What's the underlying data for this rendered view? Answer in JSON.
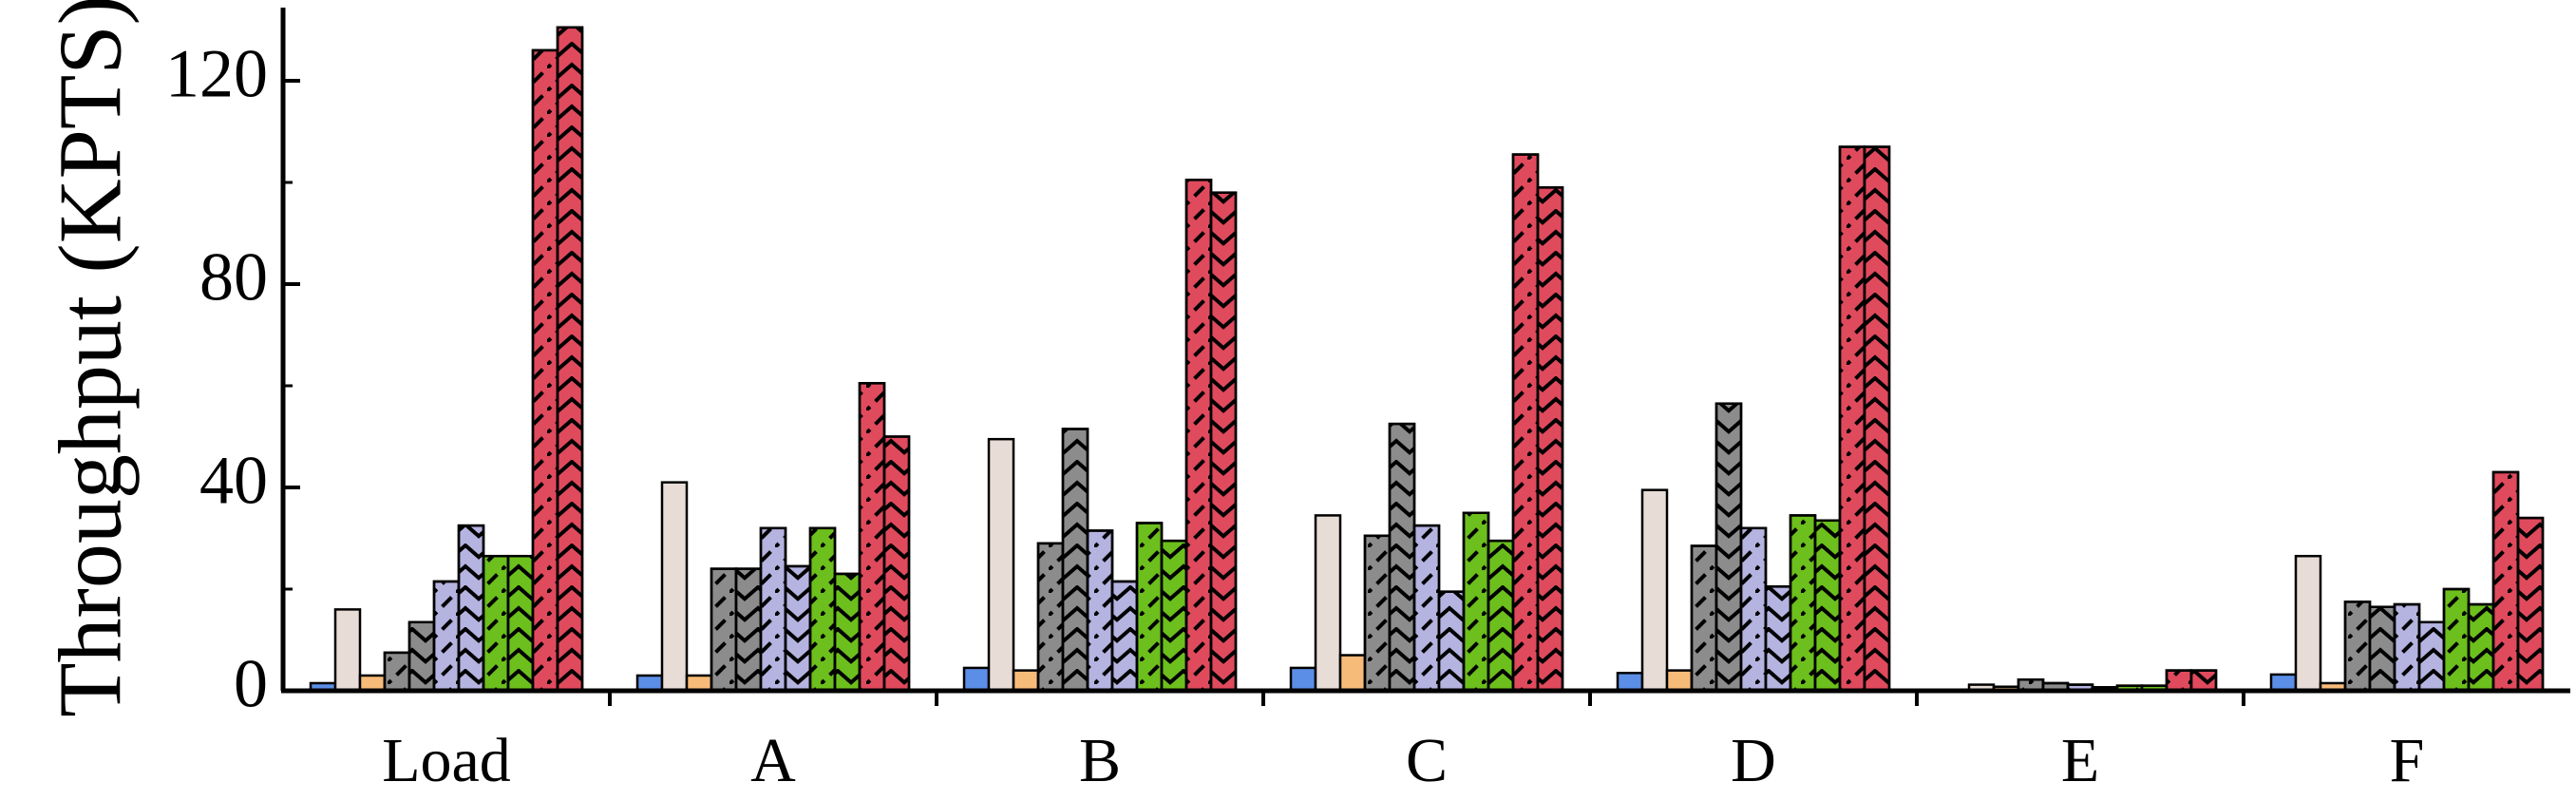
{
  "chart_data": {
    "type": "bar",
    "title": "",
    "xlabel": "",
    "ylabel": "Throughput (KPTS)",
    "ylim": [
      0,
      136
    ],
    "yticks": [
      0,
      40,
      80,
      120
    ],
    "categories": [
      "Load",
      "A",
      "B",
      "C",
      "D",
      "E",
      "F"
    ],
    "grid": false,
    "legend": "none",
    "series": [
      {
        "color": "#5b8ee6",
        "hatch": "none",
        "values": [
          1.5,
          3.0,
          4.5,
          4.5,
          3.5,
          0.0,
          3.2
        ]
      },
      {
        "color": "#e8dcd6",
        "hatch": "none",
        "values": [
          16.0,
          41.0,
          49.5,
          34.5,
          39.5,
          1.2,
          26.5
        ]
      },
      {
        "color": "#f7bb79",
        "hatch": "none",
        "values": [
          3.0,
          3.0,
          4.0,
          7.0,
          4.0,
          0.8,
          1.5
        ]
      },
      {
        "color": "#8c8c8c",
        "hatch": "forward",
        "values": [
          7.5,
          24.0,
          29.0,
          30.5,
          28.5,
          2.2,
          17.5
        ]
      },
      {
        "color": "#8c8c8c",
        "hatch": "chevron",
        "values": [
          13.5,
          24.0,
          51.5,
          52.5,
          56.5,
          1.5,
          16.5
        ]
      },
      {
        "color": "#b5b3e0",
        "hatch": "forward",
        "values": [
          21.5,
          32.0,
          31.5,
          32.5,
          32.0,
          1.2,
          17.0
        ]
      },
      {
        "color": "#b5b3e0",
        "hatch": "chevron",
        "values": [
          32.5,
          24.5,
          21.5,
          19.5,
          20.5,
          0.7,
          13.5
        ]
      },
      {
        "color": "#6cbf1c",
        "hatch": "forward",
        "values": [
          26.5,
          32.0,
          33.0,
          35.0,
          34.5,
          1.0,
          20.0
        ]
      },
      {
        "color": "#6cbf1c",
        "hatch": "chevron",
        "values": [
          26.5,
          23.0,
          29.5,
          29.5,
          33.5,
          1.0,
          17.0
        ]
      },
      {
        "color": "#e04a5d",
        "hatch": "forward",
        "values": [
          126.0,
          60.5,
          100.5,
          105.5,
          107.0,
          4.0,
          43.0
        ]
      },
      {
        "color": "#e04a5d",
        "hatch": "chevron",
        "values": [
          130.5,
          50.0,
          98.0,
          99.0,
          107.0,
          4.0,
          34.0
        ]
      }
    ]
  }
}
